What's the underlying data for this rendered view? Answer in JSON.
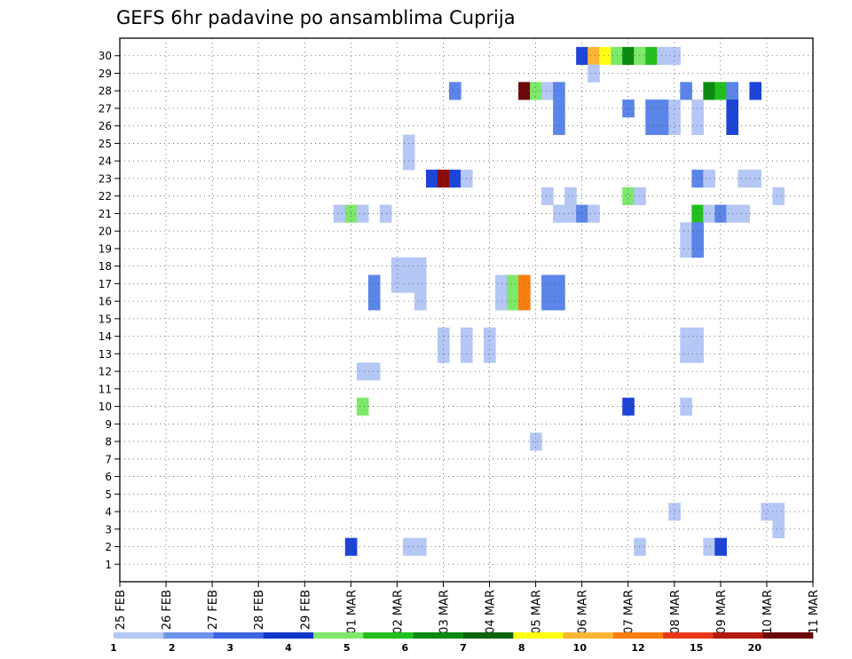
{
  "chart_data": {
    "type": "heatmap",
    "title": "GEFS 6hr padavine po ansamblima Cuprija",
    "xlabel": "",
    "ylabel": "",
    "y_ticks": [
      1,
      2,
      3,
      4,
      5,
      6,
      7,
      8,
      9,
      10,
      11,
      12,
      13,
      14,
      15,
      16,
      17,
      18,
      19,
      20,
      21,
      22,
      23,
      24,
      25,
      26,
      27,
      28,
      29,
      30
    ],
    "x_ticks": [
      "25 FEB",
      "26 FEB",
      "27 FEB",
      "28 FEB",
      "29 FEB",
      "01 MAR",
      "02 MAR",
      "03 MAR",
      "04 MAR",
      "05 MAR",
      "06 MAR",
      "07 MAR",
      "08 MAR",
      "09 MAR",
      "10 MAR",
      "11 MAR"
    ],
    "x_unit": "6-hour steps from 25 FEB 00Z",
    "x_range": [
      0,
      60
    ],
    "y_range": [
      0,
      31
    ],
    "grid": true,
    "colorbar": {
      "levels": [
        "1",
        "2",
        "3",
        "4",
        "5",
        "6",
        "7",
        "8",
        "10",
        "12",
        "15",
        "20"
      ],
      "colors": [
        "#b4c7f5",
        "#6e95ec",
        "#3b66e0",
        "#1236c8",
        "#7de86a",
        "#22c01e",
        "#0b8a12",
        "#0a6410",
        "#ffff14",
        "#fdb533",
        "#f77e0e",
        "#e83818",
        "#b31a0e",
        "#6b0808"
      ]
    },
    "cells": [
      {
        "m": 30,
        "t": 40,
        "c": "#1c44d8"
      },
      {
        "m": 30,
        "t": 41,
        "c": "#fdb533"
      },
      {
        "m": 30,
        "t": 42,
        "c": "#ffff14"
      },
      {
        "m": 30,
        "t": 43,
        "c": "#7de86a"
      },
      {
        "m": 30,
        "t": 44,
        "c": "#0b8a12"
      },
      {
        "m": 30,
        "t": 45,
        "c": "#7de86a"
      },
      {
        "m": 30,
        "t": 46,
        "c": "#22c01e"
      },
      {
        "m": 30,
        "t": 47,
        "c": "#b4c7f5"
      },
      {
        "m": 30,
        "t": 48,
        "c": "#b4c7f5"
      },
      {
        "m": 29,
        "t": 41,
        "c": "#b4c7f5"
      },
      {
        "m": 28,
        "t": 29,
        "c": "#5b85e8"
      },
      {
        "m": 28,
        "t": 35,
        "c": "#6b0808"
      },
      {
        "m": 28,
        "t": 36,
        "c": "#7de86a"
      },
      {
        "m": 28,
        "t": 37,
        "c": "#b4c7f5"
      },
      {
        "m": 28,
        "t": 38,
        "c": "#5b85e8"
      },
      {
        "m": 28,
        "t": 49,
        "c": "#5b85e8"
      },
      {
        "m": 28,
        "t": 51,
        "c": "#0b8a12"
      },
      {
        "m": 28,
        "t": 52,
        "c": "#22c01e"
      },
      {
        "m": 28,
        "t": 53,
        "c": "#5b85e8"
      },
      {
        "m": 28,
        "t": 55,
        "c": "#1c44d8"
      },
      {
        "m": 27,
        "t": 38,
        "c": "#5b85e8"
      },
      {
        "m": 27,
        "t": 44,
        "c": "#5b85e8"
      },
      {
        "m": 27,
        "t": 46,
        "c": "#5b85e8"
      },
      {
        "m": 27,
        "t": 47,
        "c": "#5b85e8"
      },
      {
        "m": 27,
        "t": 48,
        "c": "#b4c7f5"
      },
      {
        "m": 27,
        "t": 50,
        "c": "#b4c7f5"
      },
      {
        "m": 27,
        "t": 53,
        "c": "#1c44d8"
      },
      {
        "m": 26,
        "t": 38,
        "c": "#5b85e8"
      },
      {
        "m": 26,
        "t": 46,
        "c": "#5b85e8"
      },
      {
        "m": 26,
        "t": 47,
        "c": "#5b85e8"
      },
      {
        "m": 26,
        "t": 48,
        "c": "#b4c7f5"
      },
      {
        "m": 26,
        "t": 50,
        "c": "#b4c7f5"
      },
      {
        "m": 26,
        "t": 53,
        "c": "#1c44d8"
      },
      {
        "m": 25,
        "t": 25,
        "c": "#b4c7f5"
      },
      {
        "m": 24,
        "t": 25,
        "c": "#b4c7f5"
      },
      {
        "m": 23,
        "t": 27,
        "c": "#1c44d8"
      },
      {
        "m": 23,
        "t": 28,
        "c": "#8b0a0a"
      },
      {
        "m": 23,
        "t": 29,
        "c": "#1c44d8"
      },
      {
        "m": 23,
        "t": 30,
        "c": "#b4c7f5"
      },
      {
        "m": 23,
        "t": 50,
        "c": "#5b85e8"
      },
      {
        "m": 23,
        "t": 51,
        "c": "#b4c7f5"
      },
      {
        "m": 23,
        "t": 54,
        "c": "#b4c7f5"
      },
      {
        "m": 23,
        "t": 55,
        "c": "#b4c7f5"
      },
      {
        "m": 22,
        "t": 37,
        "c": "#b4c7f5"
      },
      {
        "m": 22,
        "t": 39,
        "c": "#b4c7f5"
      },
      {
        "m": 22,
        "t": 44,
        "c": "#7de86a"
      },
      {
        "m": 22,
        "t": 45,
        "c": "#b4c7f5"
      },
      {
        "m": 22,
        "t": 57,
        "c": "#b4c7f5"
      },
      {
        "m": 21,
        "t": 19,
        "c": "#b4c7f5"
      },
      {
        "m": 21,
        "t": 20,
        "c": "#7de86a"
      },
      {
        "m": 21,
        "t": 21,
        "c": "#b4c7f5"
      },
      {
        "m": 21,
        "t": 23,
        "c": "#b4c7f5"
      },
      {
        "m": 21,
        "t": 38,
        "c": "#b4c7f5"
      },
      {
        "m": 21,
        "t": 39,
        "c": "#b4c7f5"
      },
      {
        "m": 21,
        "t": 40,
        "c": "#5b85e8"
      },
      {
        "m": 21,
        "t": 41,
        "c": "#b4c7f5"
      },
      {
        "m": 21,
        "t": 50,
        "c": "#22c01e"
      },
      {
        "m": 21,
        "t": 51,
        "c": "#b4c7f5"
      },
      {
        "m": 21,
        "t": 52,
        "c": "#5b85e8"
      },
      {
        "m": 21,
        "t": 53,
        "c": "#b4c7f5"
      },
      {
        "m": 21,
        "t": 54,
        "c": "#b4c7f5"
      },
      {
        "m": 20,
        "t": 49,
        "c": "#b4c7f5"
      },
      {
        "m": 20,
        "t": 50,
        "c": "#5b85e8"
      },
      {
        "m": 19,
        "t": 49,
        "c": "#b4c7f5"
      },
      {
        "m": 19,
        "t": 50,
        "c": "#5b85e8"
      },
      {
        "m": 18,
        "t": 24,
        "c": "#b4c7f5"
      },
      {
        "m": 18,
        "t": 25,
        "c": "#b4c7f5"
      },
      {
        "m": 18,
        "t": 26,
        "c": "#b4c7f5"
      },
      {
        "m": 17,
        "t": 22,
        "c": "#5b85e8"
      },
      {
        "m": 17,
        "t": 24,
        "c": "#b4c7f5"
      },
      {
        "m": 17,
        "t": 25,
        "c": "#b4c7f5"
      },
      {
        "m": 17,
        "t": 26,
        "c": "#b4c7f5"
      },
      {
        "m": 17,
        "t": 33,
        "c": "#b4c7f5"
      },
      {
        "m": 17,
        "t": 34,
        "c": "#7de86a"
      },
      {
        "m": 17,
        "t": 35,
        "c": "#f77e0e"
      },
      {
        "m": 17,
        "t": 37,
        "c": "#5b85e8"
      },
      {
        "m": 17,
        "t": 38,
        "c": "#5b85e8"
      },
      {
        "m": 16,
        "t": 22,
        "c": "#5b85e8"
      },
      {
        "m": 16,
        "t": 26,
        "c": "#b4c7f5"
      },
      {
        "m": 16,
        "t": 33,
        "c": "#b4c7f5"
      },
      {
        "m": 16,
        "t": 34,
        "c": "#7de86a"
      },
      {
        "m": 16,
        "t": 35,
        "c": "#f77e0e"
      },
      {
        "m": 16,
        "t": 37,
        "c": "#5b85e8"
      },
      {
        "m": 16,
        "t": 38,
        "c": "#5b85e8"
      },
      {
        "m": 14,
        "t": 28,
        "c": "#b4c7f5"
      },
      {
        "m": 14,
        "t": 30,
        "c": "#b4c7f5"
      },
      {
        "m": 14,
        "t": 32,
        "c": "#b4c7f5"
      },
      {
        "m": 14,
        "t": 49,
        "c": "#b4c7f5"
      },
      {
        "m": 14,
        "t": 50,
        "c": "#b4c7f5"
      },
      {
        "m": 13,
        "t": 28,
        "c": "#b4c7f5"
      },
      {
        "m": 13,
        "t": 30,
        "c": "#b4c7f5"
      },
      {
        "m": 13,
        "t": 32,
        "c": "#b4c7f5"
      },
      {
        "m": 13,
        "t": 49,
        "c": "#b4c7f5"
      },
      {
        "m": 13,
        "t": 50,
        "c": "#b4c7f5"
      },
      {
        "m": 12,
        "t": 21,
        "c": "#b4c7f5"
      },
      {
        "m": 12,
        "t": 22,
        "c": "#b4c7f5"
      },
      {
        "m": 10,
        "t": 21,
        "c": "#7de86a"
      },
      {
        "m": 10,
        "t": 44,
        "c": "#1c44d8"
      },
      {
        "m": 10,
        "t": 49,
        "c": "#b4c7f5"
      },
      {
        "m": 8,
        "t": 36,
        "c": "#b4c7f5"
      },
      {
        "m": 4,
        "t": 48,
        "c": "#b4c7f5"
      },
      {
        "m": 4,
        "t": 56,
        "c": "#b4c7f5"
      },
      {
        "m": 4,
        "t": 57,
        "c": "#b4c7f5"
      },
      {
        "m": 3,
        "t": 57,
        "c": "#b4c7f5"
      },
      {
        "m": 2,
        "t": 20,
        "c": "#1c44d8"
      },
      {
        "m": 2,
        "t": 25,
        "c": "#b4c7f5"
      },
      {
        "m": 2,
        "t": 26,
        "c": "#b4c7f5"
      },
      {
        "m": 2,
        "t": 45,
        "c": "#b4c7f5"
      },
      {
        "m": 2,
        "t": 51,
        "c": "#b4c7f5"
      },
      {
        "m": 2,
        "t": 52,
        "c": "#1c44d8"
      }
    ]
  }
}
